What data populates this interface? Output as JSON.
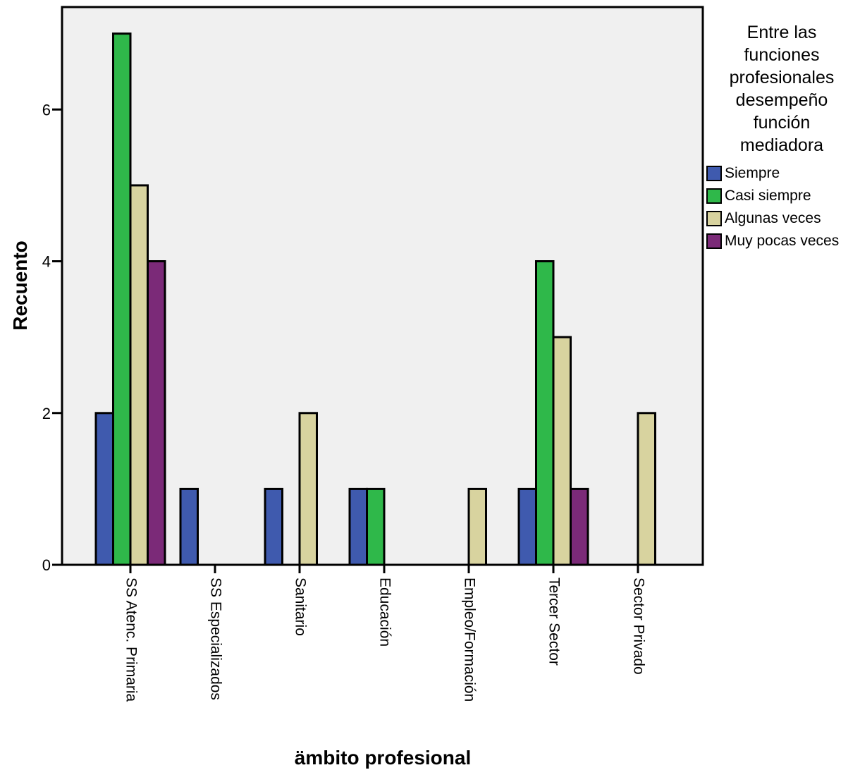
{
  "chart_data": {
    "type": "bar",
    "title": "",
    "xlabel": "ämbito profesional",
    "ylabel": "Recuento",
    "ylim": [
      0,
      7.35
    ],
    "yticks": [
      0,
      2,
      4,
      6
    ],
    "categories": [
      "SS Atenc. Primaria",
      "SS Especializados",
      "Sanitario",
      "Educación",
      "Empleo/Formación",
      "Tercer Sector",
      "Sector Privado"
    ],
    "legend": {
      "title": "Entre las funciones profesionales desempeño función mediadora",
      "title_lines": [
        "Entre las",
        "funciones",
        "profesionales",
        "desempeño",
        "función",
        "mediadora"
      ],
      "placement": "right"
    },
    "series": [
      {
        "name": "Siempre",
        "color": "#3f5aae",
        "values": [
          2,
          1,
          1,
          1,
          0,
          1,
          0
        ]
      },
      {
        "name": "Casi siempre",
        "color": "#2fb84a",
        "values": [
          7,
          0,
          0,
          1,
          0,
          4,
          0
        ]
      },
      {
        "name": "Algunas veces",
        "color": "#d8d39f",
        "values": [
          5,
          0,
          2,
          0,
          1,
          3,
          2
        ]
      },
      {
        "name": "Muy pocas veces",
        "color": "#7b2a78",
        "values": [
          4,
          0,
          0,
          0,
          0,
          1,
          0
        ]
      }
    ],
    "plot_background": "#f0f0f0",
    "grid": false
  }
}
